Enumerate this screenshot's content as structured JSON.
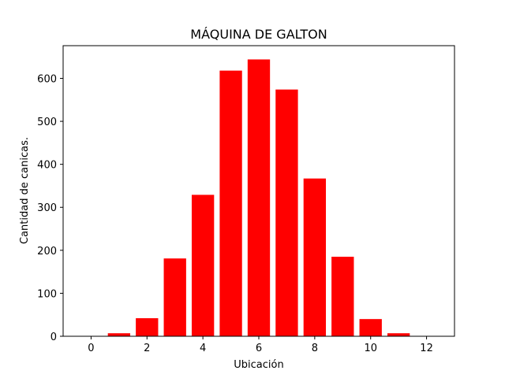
{
  "chart_data": {
    "type": "bar",
    "title": "MÁQUINA DE GALTON",
    "xlabel": "Ubicación",
    "ylabel": "Cantidad de canicas.",
    "x": [
      0,
      1,
      2,
      3,
      4,
      5,
      6,
      7,
      8,
      9,
      10,
      11,
      12
    ],
    "values": [
      0,
      7,
      42,
      181,
      329,
      618,
      644,
      574,
      367,
      185,
      40,
      7,
      0
    ],
    "bar_color": "#ff0000",
    "xlim": [
      -1,
      13
    ],
    "ylim": [
      0,
      676
    ],
    "xticks": [
      0,
      2,
      4,
      6,
      8,
      10,
      12
    ],
    "yticks": [
      0,
      100,
      200,
      300,
      400,
      500,
      600
    ],
    "grid": false,
    "legend": "none"
  }
}
